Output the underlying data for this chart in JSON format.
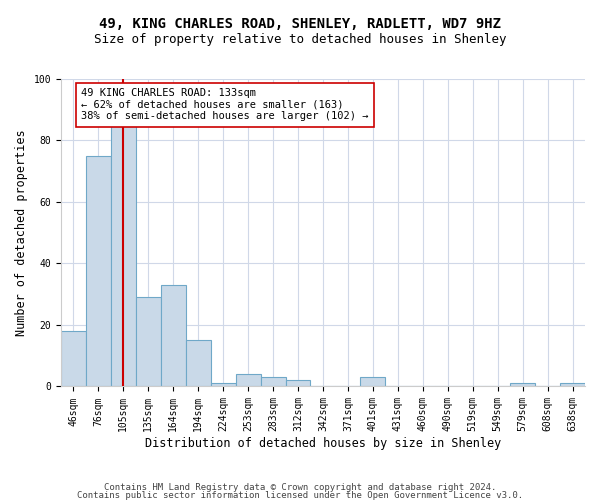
{
  "title_line1": "49, KING CHARLES ROAD, SHENLEY, RADLETT, WD7 9HZ",
  "title_line2": "Size of property relative to detached houses in Shenley",
  "xlabel": "Distribution of detached houses by size in Shenley",
  "ylabel": "Number of detached properties",
  "bar_labels": [
    "46sqm",
    "76sqm",
    "105sqm",
    "135sqm",
    "164sqm",
    "194sqm",
    "224sqm",
    "253sqm",
    "283sqm",
    "312sqm",
    "342sqm",
    "371sqm",
    "401sqm",
    "431sqm",
    "460sqm",
    "490sqm",
    "519sqm",
    "549sqm",
    "579sqm",
    "608sqm",
    "638sqm"
  ],
  "bar_heights": [
    18,
    75,
    85,
    29,
    33,
    15,
    1,
    4,
    3,
    2,
    0,
    0,
    3,
    0,
    0,
    0,
    0,
    0,
    1,
    0,
    1
  ],
  "bar_color": "#c9d9e8",
  "bar_edge_color": "#6fa8c8",
  "vline_x_index": 2,
  "vline_color": "#cc0000",
  "annotation_text": "49 KING CHARLES ROAD: 133sqm\n← 62% of detached houses are smaller (163)\n38% of semi-detached houses are larger (102) →",
  "ylim": [
    0,
    100
  ],
  "yticks": [
    0,
    20,
    40,
    60,
    80,
    100
  ],
  "footer_line1": "Contains HM Land Registry data © Crown copyright and database right 2024.",
  "footer_line2": "Contains public sector information licensed under the Open Government Licence v3.0.",
  "bg_color": "#ffffff",
  "grid_color": "#d0d8e8",
  "title_fontsize": 10,
  "subtitle_fontsize": 9,
  "annotation_fontsize": 7.5,
  "axis_label_fontsize": 8.5,
  "tick_fontsize": 7,
  "footer_fontsize": 6.5
}
